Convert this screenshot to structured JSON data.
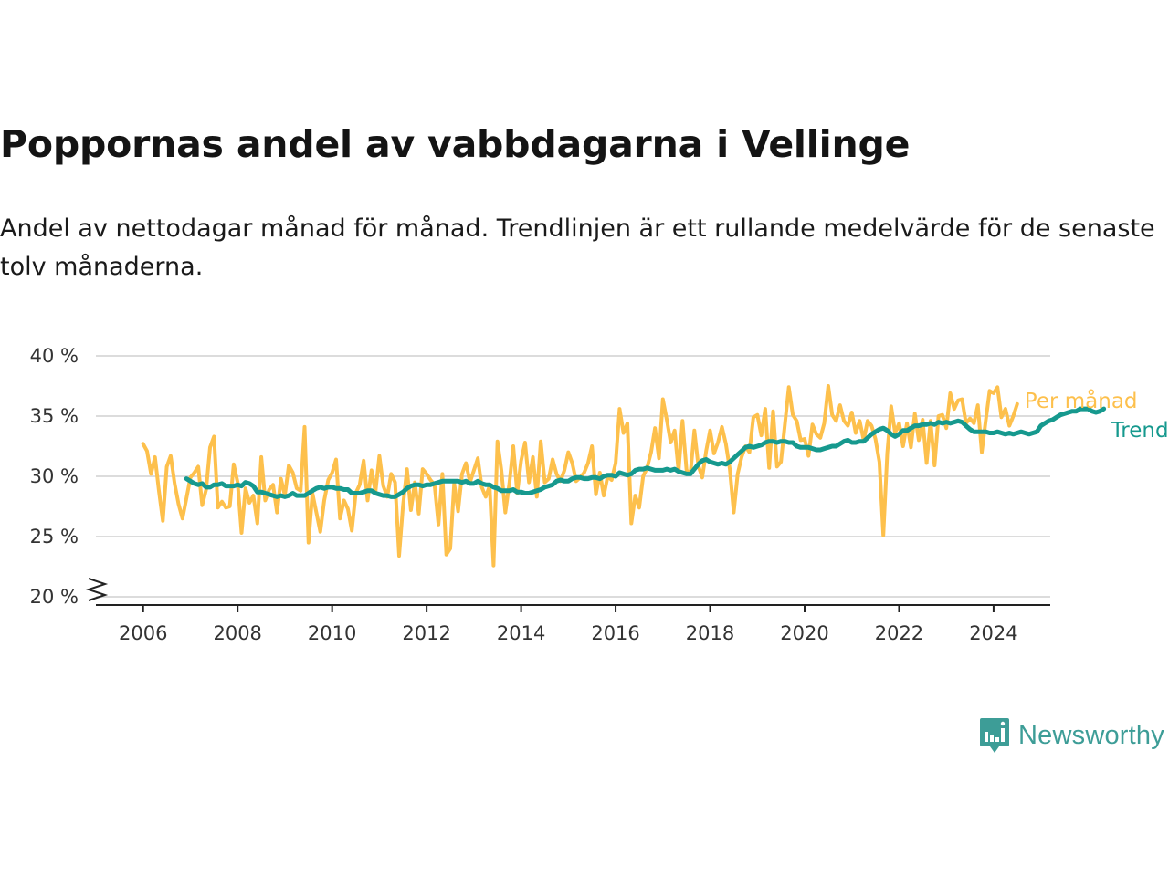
{
  "title": "Poppornas andel av vabbdagarna i Vellinge",
  "subtitle": "Andel av nettodagar månad för månad. Trendlinjen är ett rullande medelvärde för de senaste tolv månaderna.",
  "brand": {
    "name": "Newsworthy",
    "icon": "newsworthy-logo-icon",
    "color": "#3d9d97"
  },
  "chart_data": {
    "type": "line",
    "title": "Poppornas andel av vabbdagarna i Vellinge",
    "subtitle": "Andel av nettodagar månad för månad. Trendlinjen är ett rullande medelvärde för de senaste tolv månaderna.",
    "xlabel": "",
    "ylabel": "",
    "xlim": [
      2005.0,
      2025.2
    ],
    "ylim": [
      20,
      40
    ],
    "x_ticks": [
      2006,
      2008,
      2010,
      2012,
      2014,
      2016,
      2018,
      2020,
      2022,
      2024
    ],
    "x_tick_labels": [
      "2006",
      "2008",
      "2010",
      "2012",
      "2014",
      "2016",
      "2018",
      "2020",
      "2022",
      "2024"
    ],
    "y_ticks": [
      20,
      25,
      30,
      35,
      40
    ],
    "y_tick_labels": [
      "20 %",
      "25 %",
      "30 %",
      "35 %",
      "40 %"
    ],
    "grid": "horizontal",
    "axis_break": true,
    "legend": "direct-labels-right",
    "series": [
      {
        "name": "Per månad",
        "color": "#fdc04c",
        "start": "2006-01",
        "frequency": "monthly",
        "values": [
          32.7,
          32.1,
          30.2,
          31.6,
          28.8,
          26.3,
          30.8,
          31.7,
          29.4,
          27.7,
          26.5,
          28.2,
          29.9,
          30.3,
          30.8,
          27.6,
          28.9,
          32.4,
          33.3,
          27.4,
          27.9,
          27.4,
          27.5,
          31.0,
          29.5,
          25.3,
          29.0,
          27.8,
          28.4,
          26.1,
          31.6,
          28.0,
          28.9,
          29.3,
          27.0,
          29.8,
          28.4,
          30.9,
          30.3,
          29.0,
          28.8,
          34.1,
          24.5,
          28.6,
          27.0,
          25.4,
          28.0,
          29.7,
          30.3,
          31.4,
          26.5,
          28.0,
          27.3,
          25.5,
          28.6,
          29.3,
          31.3,
          28.0,
          30.5,
          28.7,
          31.7,
          29.2,
          28.3,
          30.2,
          29.5,
          23.4,
          27.6,
          30.6,
          27.2,
          29.5,
          26.9,
          30.6,
          30.2,
          29.7,
          29.3,
          26.0,
          30.2,
          23.5,
          24.0,
          29.4,
          27.1,
          30.2,
          31.1,
          29.5,
          30.5,
          31.5,
          29.1,
          28.3,
          29.2,
          22.6,
          32.9,
          30.5,
          27.0,
          29.4,
          32.5,
          28.6,
          31.3,
          32.8,
          29.5,
          31.6,
          28.3,
          32.9,
          29.5,
          29.8,
          31.4,
          30.2,
          29.6,
          30.5,
          32.0,
          31.1,
          29.6,
          29.9,
          30.3,
          31.1,
          32.5,
          28.5,
          30.3,
          28.4,
          30.0,
          29.7,
          31.1,
          35.6,
          33.6,
          34.4,
          26.1,
          28.4,
          27.4,
          30.0,
          30.7,
          32.0,
          34.0,
          31.5,
          36.4,
          34.7,
          32.8,
          33.8,
          30.4,
          34.6,
          30.5,
          30.2,
          33.8,
          30.9,
          29.9,
          32.1,
          33.8,
          31.9,
          32.8,
          34.1,
          32.7,
          30.6,
          27.0,
          30.2,
          31.6,
          32.5,
          32.0,
          34.9,
          35.1,
          33.4,
          35.6,
          30.7,
          35.4,
          30.8,
          31.2,
          34.3,
          37.4,
          35.1,
          34.6,
          33.0,
          33.1,
          31.7,
          34.3,
          33.5,
          33.2,
          34.4,
          37.5,
          35.1,
          34.6,
          35.9,
          34.6,
          34.2,
          35.3,
          33.6,
          34.6,
          33.0,
          34.6,
          34.2,
          33.1,
          31.2,
          25.1,
          31.9,
          35.8,
          33.6,
          34.4,
          32.5,
          34.4,
          32.4,
          35.2,
          33.0,
          34.7,
          31.1,
          34.6,
          30.9,
          35.0,
          35.1,
          34.0,
          36.9,
          35.6,
          36.3,
          36.4,
          34.4,
          34.8,
          34.4,
          35.9,
          32.0,
          34.6,
          37.1,
          36.9,
          37.4,
          34.9,
          35.6,
          34.2,
          35.0,
          36.0
        ]
      },
      {
        "name": "Trend",
        "color": "#16998e",
        "start": "2006-12",
        "frequency": "monthly",
        "values": [
          29.8,
          29.6,
          29.4,
          29.3,
          29.4,
          29.1,
          29.1,
          29.3,
          29.3,
          29.4,
          29.2,
          29.2,
          29.2,
          29.3,
          29.2,
          29.5,
          29.4,
          29.2,
          28.7,
          28.7,
          28.6,
          28.5,
          28.4,
          28.3,
          28.4,
          28.3,
          28.4,
          28.6,
          28.4,
          28.4,
          28.4,
          28.6,
          28.8,
          29.0,
          29.1,
          29.0,
          29.1,
          29.1,
          29.0,
          29.0,
          28.9,
          28.9,
          28.6,
          28.6,
          28.6,
          28.7,
          28.8,
          28.8,
          28.6,
          28.5,
          28.4,
          28.4,
          28.3,
          28.3,
          28.5,
          28.7,
          29.0,
          29.2,
          29.3,
          29.3,
          29.2,
          29.3,
          29.3,
          29.4,
          29.5,
          29.6,
          29.6,
          29.6,
          29.6,
          29.6,
          29.5,
          29.6,
          29.4,
          29.4,
          29.6,
          29.4,
          29.3,
          29.3,
          29.1,
          29.0,
          28.8,
          28.8,
          28.8,
          28.9,
          28.7,
          28.7,
          28.6,
          28.6,
          28.7,
          28.8,
          28.9,
          29.1,
          29.2,
          29.3,
          29.6,
          29.7,
          29.6,
          29.6,
          29.8,
          29.9,
          29.9,
          29.8,
          29.8,
          29.9,
          29.9,
          29.8,
          30.0,
          30.1,
          30.1,
          30.0,
          30.3,
          30.2,
          30.1,
          30.2,
          30.5,
          30.6,
          30.6,
          30.7,
          30.6,
          30.5,
          30.5,
          30.5,
          30.6,
          30.5,
          30.6,
          30.4,
          30.3,
          30.2,
          30.2,
          30.6,
          31.0,
          31.3,
          31.4,
          31.2,
          31.1,
          31.0,
          31.1,
          31.0,
          31.2,
          31.5,
          31.8,
          32.1,
          32.4,
          32.5,
          32.4,
          32.5,
          32.6,
          32.8,
          32.9,
          32.9,
          32.8,
          32.9,
          32.9,
          32.8,
          32.8,
          32.5,
          32.4,
          32.4,
          32.4,
          32.3,
          32.2,
          32.2,
          32.3,
          32.4,
          32.5,
          32.5,
          32.7,
          32.9,
          33.0,
          32.8,
          32.8,
          32.9,
          32.9,
          33.2,
          33.5,
          33.7,
          33.9,
          34.0,
          33.8,
          33.5,
          33.3,
          33.5,
          33.8,
          33.8,
          34.0,
          34.2,
          34.2,
          34.3,
          34.3,
          34.4,
          34.3,
          34.5,
          34.4,
          34.5,
          34.4,
          34.5,
          34.6,
          34.5,
          34.2,
          33.9,
          33.7,
          33.7,
          33.7,
          33.7,
          33.6,
          33.6,
          33.7,
          33.6,
          33.5,
          33.6,
          33.5,
          33.6,
          33.7,
          33.6,
          33.5,
          33.6,
          33.7,
          34.2,
          34.4,
          34.6,
          34.7,
          34.9,
          35.1,
          35.2,
          35.3,
          35.4,
          35.4,
          35.6,
          35.6,
          35.6,
          35.4,
          35.3,
          35.4,
          35.6
        ]
      }
    ]
  }
}
